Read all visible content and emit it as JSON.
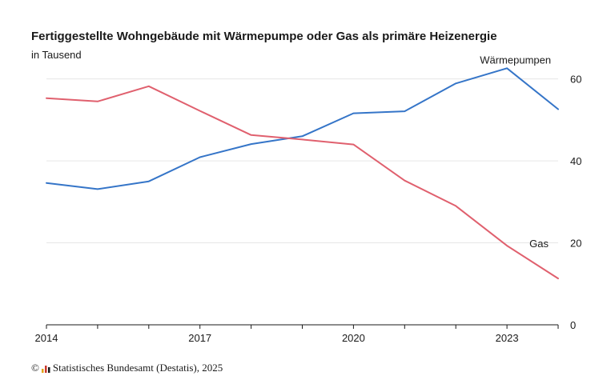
{
  "chart_data": {
    "type": "line",
    "title": "Fertiggestellte Wohngebäude mit Wärmepumpe oder Gas als primäre Heizenergie",
    "subtitle": "in Tausend",
    "x": [
      2014,
      2015,
      2016,
      2017,
      2018,
      2019,
      2020,
      2021,
      2022,
      2023,
      2024
    ],
    "x_tick_labels": [
      "2014",
      "2017",
      "2020",
      "2023"
    ],
    "y_tick_labels": [
      "0",
      "20",
      "40",
      "60"
    ],
    "ylim": [
      0,
      65
    ],
    "y_axis_position": "right",
    "grid": true,
    "series": [
      {
        "name": "Wärmepumpen",
        "color": "#3575c8",
        "values": [
          34.6,
          33.1,
          35.0,
          40.9,
          44.1,
          46.0,
          51.6,
          52.1,
          58.9,
          62.6,
          52.6
        ]
      },
      {
        "name": "Gas",
        "color": "#e0606e",
        "values": [
          55.3,
          54.5,
          58.2,
          52.2,
          46.3,
          45.2,
          44.0,
          35.2,
          29.0,
          19.3,
          11.3
        ]
      }
    ]
  },
  "source": {
    "copyright": "©",
    "text": "Statistisches Bundesamt (Destatis), 2025"
  }
}
